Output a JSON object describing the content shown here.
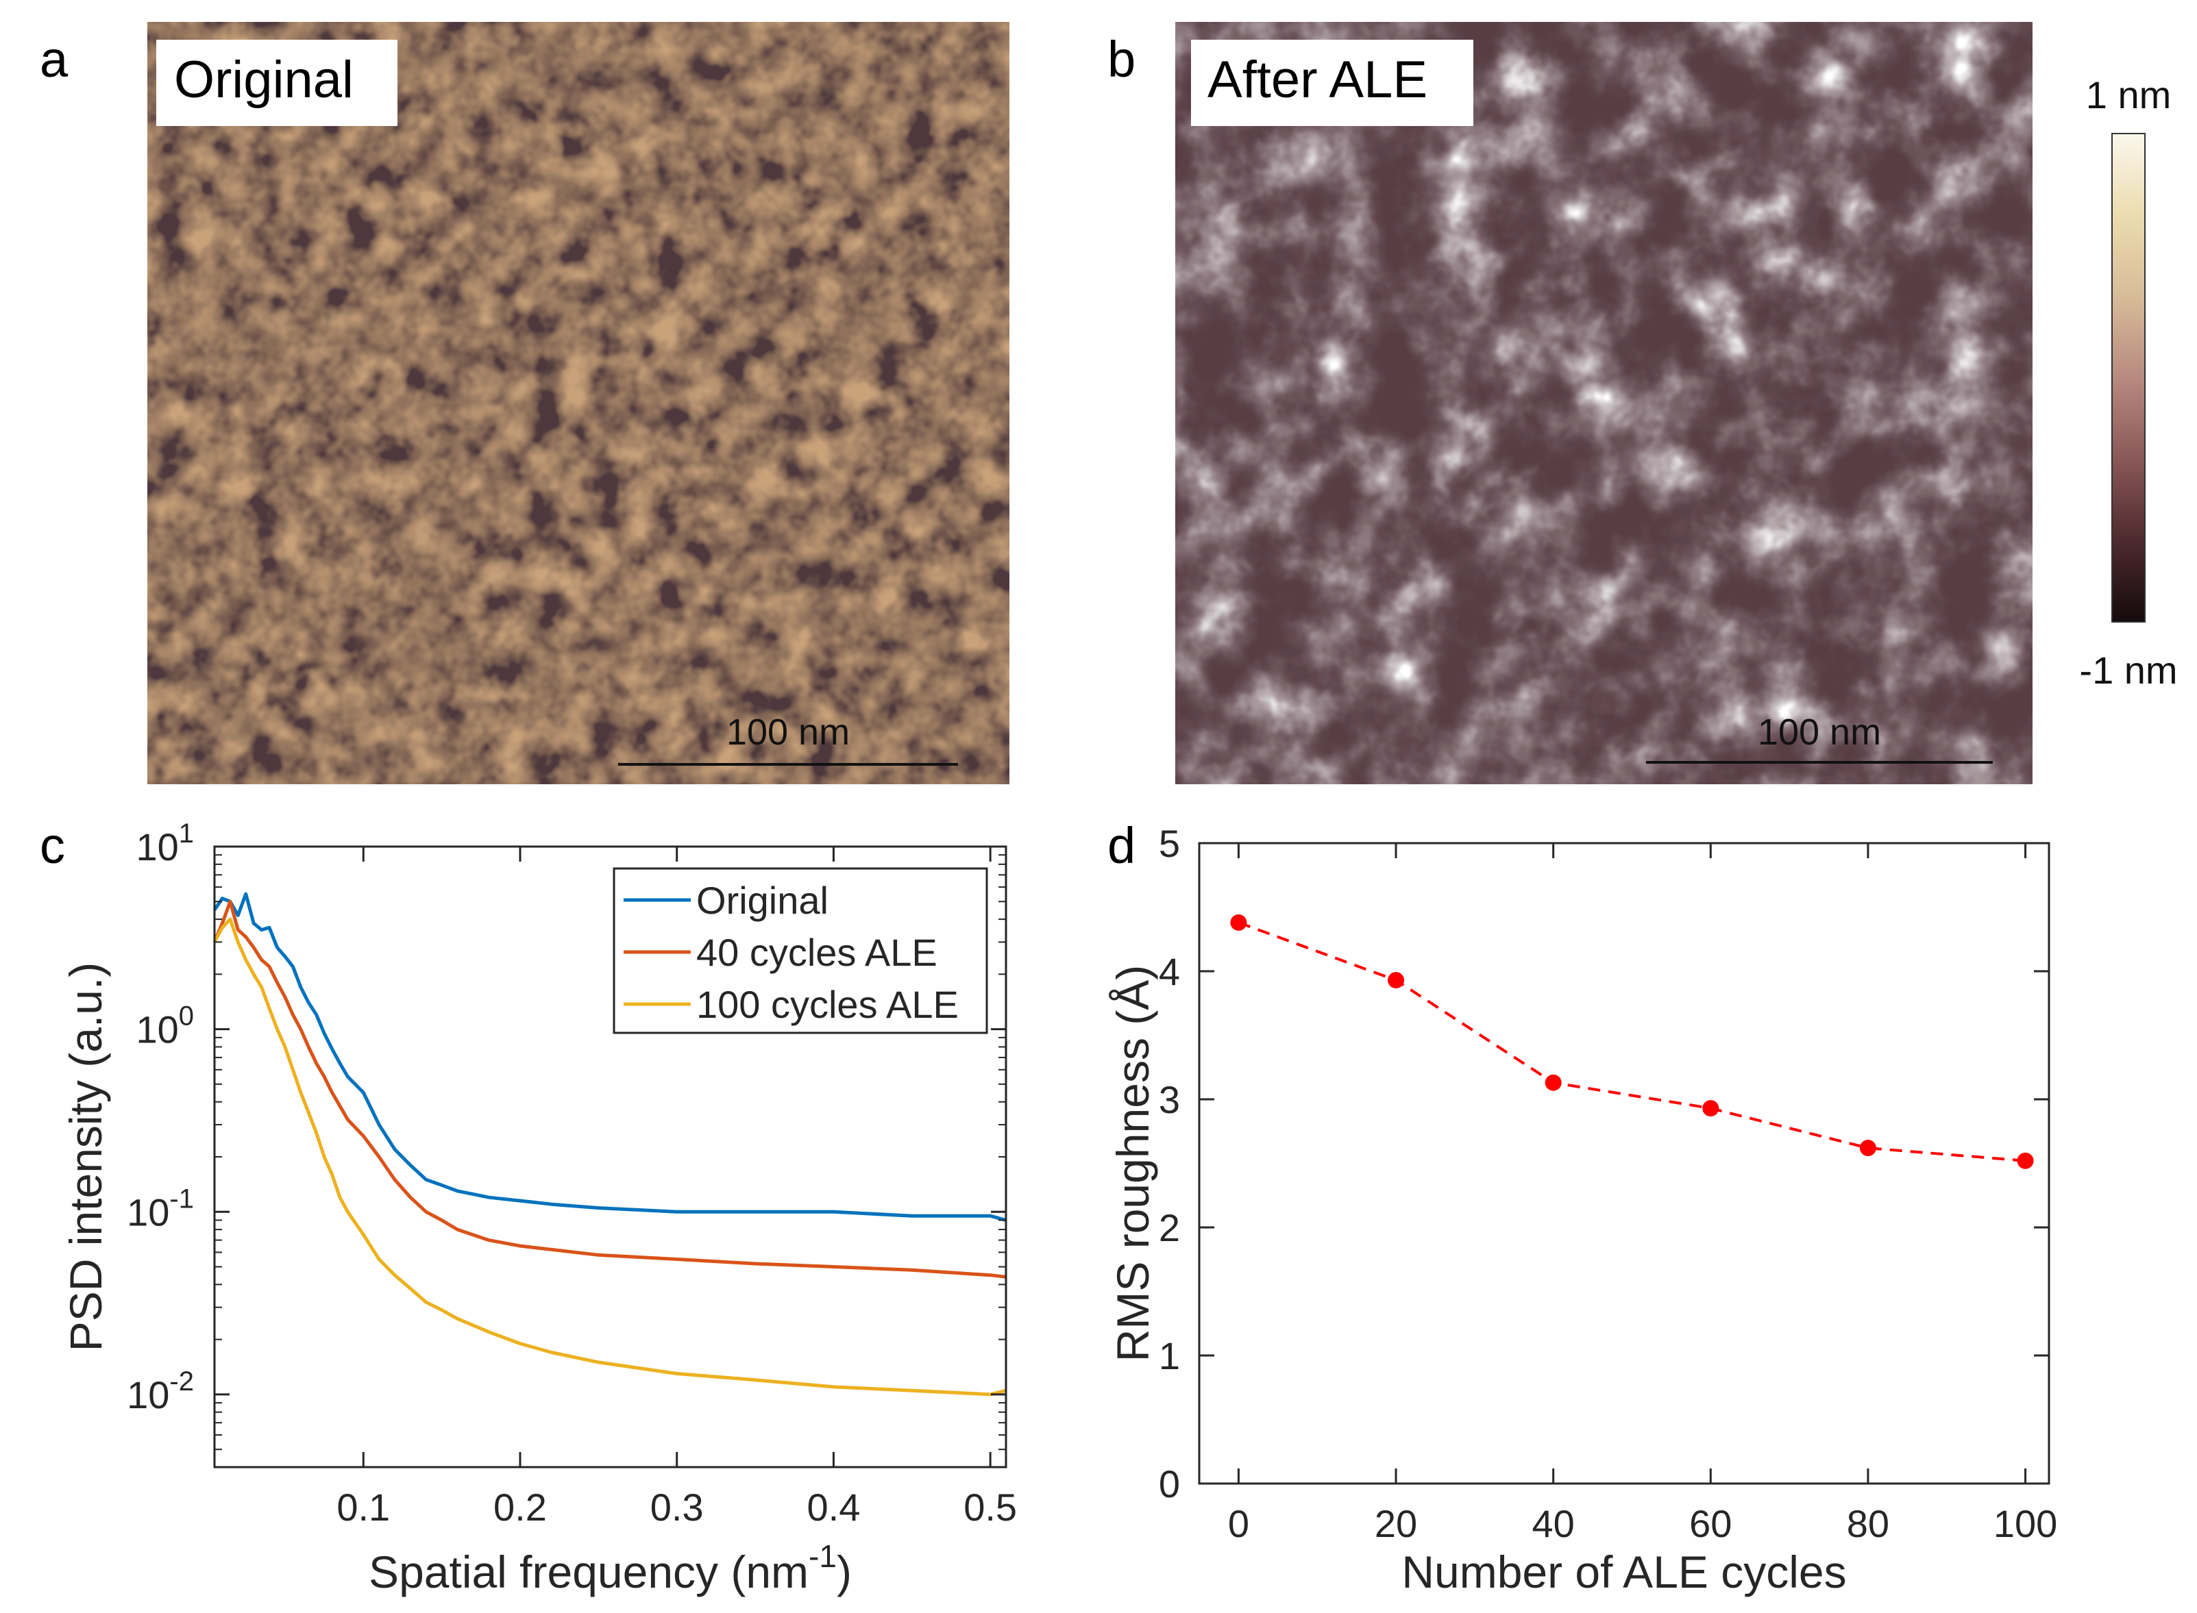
{
  "panels": {
    "a": {
      "letter": "a",
      "label": "Original",
      "scalebar": "100 nm"
    },
    "b": {
      "letter": "b",
      "label": "After ALE",
      "scalebar": "100 nm"
    },
    "c": {
      "letter": "c"
    },
    "d": {
      "letter": "d"
    }
  },
  "colorbar": {
    "max_label": "1 nm",
    "min_label": "-1 nm",
    "colors": [
      "#140a0c",
      "#4e2a2e",
      "#8a5858",
      "#b88a80",
      "#d8bc98",
      "#ecdcb0",
      "#fbf7ec"
    ]
  },
  "chart_data": [
    {
      "panel": "c",
      "type": "line",
      "yscale": "log",
      "xlabel": "Spatial frequency (nm",
      "xlabel_sup": "-1",
      "xlabel_close": ")",
      "ylabel": "PSD intensity (a.u.)",
      "xlim": [
        0.005,
        0.51
      ],
      "ylim": [
        0.004,
        10
      ],
      "xticks": [
        {
          "value": 0.1,
          "label": "0.1"
        },
        {
          "value": 0.2,
          "label": "0.2"
        },
        {
          "value": 0.3,
          "label": "0.3"
        },
        {
          "value": 0.4,
          "label": "0.4"
        },
        {
          "value": 0.5,
          "label": "0.5"
        }
      ],
      "yticks": [
        {
          "value": 10,
          "base": "10",
          "exp": "1"
        },
        {
          "value": 1,
          "base": "10",
          "exp": "0"
        },
        {
          "value": 0.1,
          "base": "10",
          "exp": "-1"
        },
        {
          "value": 0.01,
          "base": "10",
          "exp": "-2"
        }
      ],
      "legend_position": "top-right",
      "series": [
        {
          "name": "Original",
          "color": "#0072bd",
          "x": [
            0.005,
            0.01,
            0.015,
            0.02,
            0.025,
            0.03,
            0.035,
            0.04,
            0.045,
            0.05,
            0.055,
            0.06,
            0.065,
            0.07,
            0.075,
            0.08,
            0.085,
            0.09,
            0.1,
            0.11,
            0.12,
            0.13,
            0.14,
            0.15,
            0.16,
            0.17,
            0.18,
            0.2,
            0.22,
            0.25,
            0.3,
            0.35,
            0.4,
            0.45,
            0.5,
            0.51
          ],
          "y": [
            4.5,
            5.2,
            5.0,
            4.2,
            5.5,
            3.8,
            3.5,
            3.6,
            2.8,
            2.5,
            2.2,
            1.7,
            1.4,
            1.2,
            0.95,
            0.78,
            0.65,
            0.55,
            0.45,
            0.3,
            0.22,
            0.18,
            0.15,
            0.14,
            0.13,
            0.125,
            0.12,
            0.115,
            0.11,
            0.105,
            0.1,
            0.1,
            0.1,
            0.095,
            0.095,
            0.09
          ]
        },
        {
          "name": "40 cycles ALE",
          "color": "#d95319",
          "x": [
            0.005,
            0.01,
            0.015,
            0.02,
            0.025,
            0.03,
            0.035,
            0.04,
            0.045,
            0.05,
            0.055,
            0.06,
            0.065,
            0.07,
            0.075,
            0.08,
            0.085,
            0.09,
            0.1,
            0.11,
            0.12,
            0.13,
            0.14,
            0.15,
            0.16,
            0.18,
            0.2,
            0.25,
            0.3,
            0.35,
            0.4,
            0.45,
            0.5,
            0.51
          ],
          "y": [
            3.0,
            3.8,
            5.0,
            3.5,
            3.2,
            2.8,
            2.4,
            2.2,
            1.8,
            1.5,
            1.2,
            1.0,
            0.8,
            0.65,
            0.55,
            0.45,
            0.38,
            0.32,
            0.26,
            0.2,
            0.15,
            0.12,
            0.1,
            0.09,
            0.08,
            0.07,
            0.065,
            0.058,
            0.055,
            0.052,
            0.05,
            0.048,
            0.045,
            0.044
          ]
        },
        {
          "name": "100 cycles ALE",
          "color": "#edb120",
          "x": [
            0.005,
            0.01,
            0.015,
            0.02,
            0.025,
            0.03,
            0.035,
            0.04,
            0.045,
            0.05,
            0.055,
            0.06,
            0.065,
            0.07,
            0.075,
            0.08,
            0.085,
            0.09,
            0.1,
            0.11,
            0.12,
            0.13,
            0.14,
            0.15,
            0.16,
            0.18,
            0.2,
            0.22,
            0.25,
            0.3,
            0.35,
            0.4,
            0.45,
            0.5,
            0.51
          ],
          "y": [
            3.0,
            3.6,
            4.0,
            3.0,
            2.4,
            2.0,
            1.7,
            1.3,
            1.0,
            0.8,
            0.6,
            0.45,
            0.35,
            0.27,
            0.2,
            0.16,
            0.12,
            0.1,
            0.075,
            0.055,
            0.045,
            0.038,
            0.032,
            0.029,
            0.026,
            0.022,
            0.019,
            0.017,
            0.015,
            0.013,
            0.012,
            0.011,
            0.0105,
            0.01,
            0.0105
          ]
        }
      ]
    },
    {
      "panel": "d",
      "type": "line",
      "xlabel": "Number of ALE cycles",
      "ylabel": "RMS roughness (Å)",
      "xlim": [
        -5,
        103
      ],
      "ylim": [
        0,
        5
      ],
      "xticks": [
        0,
        20,
        40,
        60,
        80,
        100
      ],
      "yticks": [
        0,
        1,
        2,
        3,
        4,
        5
      ],
      "series": [
        {
          "name": "RMS roughness",
          "color": "#ff0000",
          "style": "dashed-with-markers",
          "x": [
            0,
            20,
            40,
            60,
            80,
            100
          ],
          "y": [
            4.38,
            3.93,
            3.13,
            2.93,
            2.62,
            2.52
          ]
        }
      ]
    }
  ]
}
